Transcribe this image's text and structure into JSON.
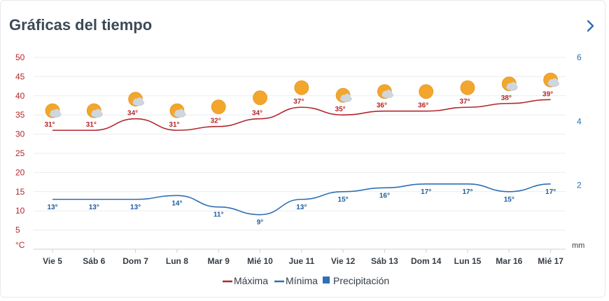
{
  "header": {
    "title": "Gráficas del tiempo"
  },
  "colors": {
    "max": "#b3262b",
    "min": "#2e6fb5",
    "precip": "#2e6fb5",
    "grid": "#e8ecf0",
    "sun": "#f2a72c",
    "cloud": "#cfd6dd"
  },
  "chart_data": {
    "type": "line",
    "title": "",
    "categories": [
      "Vie 5",
      "Sáb 6",
      "Dom 7",
      "Lun 8",
      "Mar 9",
      "Mié 10",
      "Jue 11",
      "Vie 12",
      "Sáb 13",
      "Dom 14",
      "Lun 15",
      "Mar 16",
      "Mié 17"
    ],
    "series": [
      {
        "name": "Máxima",
        "values": [
          31,
          31,
          34,
          31,
          32,
          34,
          37,
          35,
          36,
          36,
          37,
          38,
          39
        ],
        "labels": [
          "31°",
          "31°",
          "34°",
          "31°",
          "32°",
          "34°",
          "37°",
          "35°",
          "36°",
          "36°",
          "37°",
          "38°",
          "39°"
        ]
      },
      {
        "name": "Mínima",
        "values": [
          13,
          13,
          13,
          14,
          11,
          9,
          13,
          15,
          16,
          17,
          17,
          15,
          17
        ],
        "labels": [
          "13°",
          "13°",
          "13°",
          "14°",
          "11°",
          "9°",
          "13°",
          "15°",
          "16°",
          "17°",
          "17°",
          "15°",
          "17°"
        ]
      },
      {
        "name": "Precipitación",
        "values": [
          0,
          0,
          0,
          0,
          0,
          0,
          0,
          0,
          0,
          0,
          0,
          0,
          0
        ]
      }
    ],
    "weather_icons": [
      "partly-cloudy-icon",
      "partly-cloudy-icon",
      "partly-cloudy-icon",
      "partly-cloudy-icon",
      "sun-icon",
      "sun-icon",
      "sun-icon",
      "partly-cloudy-icon",
      "partly-cloudy-icon",
      "sun-icon",
      "sun-icon",
      "partly-cloudy-icon",
      "partly-cloudy-icon"
    ],
    "y_left": {
      "unit": "°C",
      "ticks": [
        5,
        10,
        15,
        20,
        25,
        30,
        35,
        40,
        45,
        50
      ],
      "ylim": [
        0,
        50
      ]
    },
    "y_right": {
      "unit": "mm",
      "ticks": [
        2,
        4,
        6
      ],
      "ylim": [
        0,
        6
      ]
    },
    "grid": true,
    "legend": {
      "position": "bottom-center",
      "items": [
        "Máxima",
        "Mínima",
        "Precipitación"
      ]
    }
  }
}
